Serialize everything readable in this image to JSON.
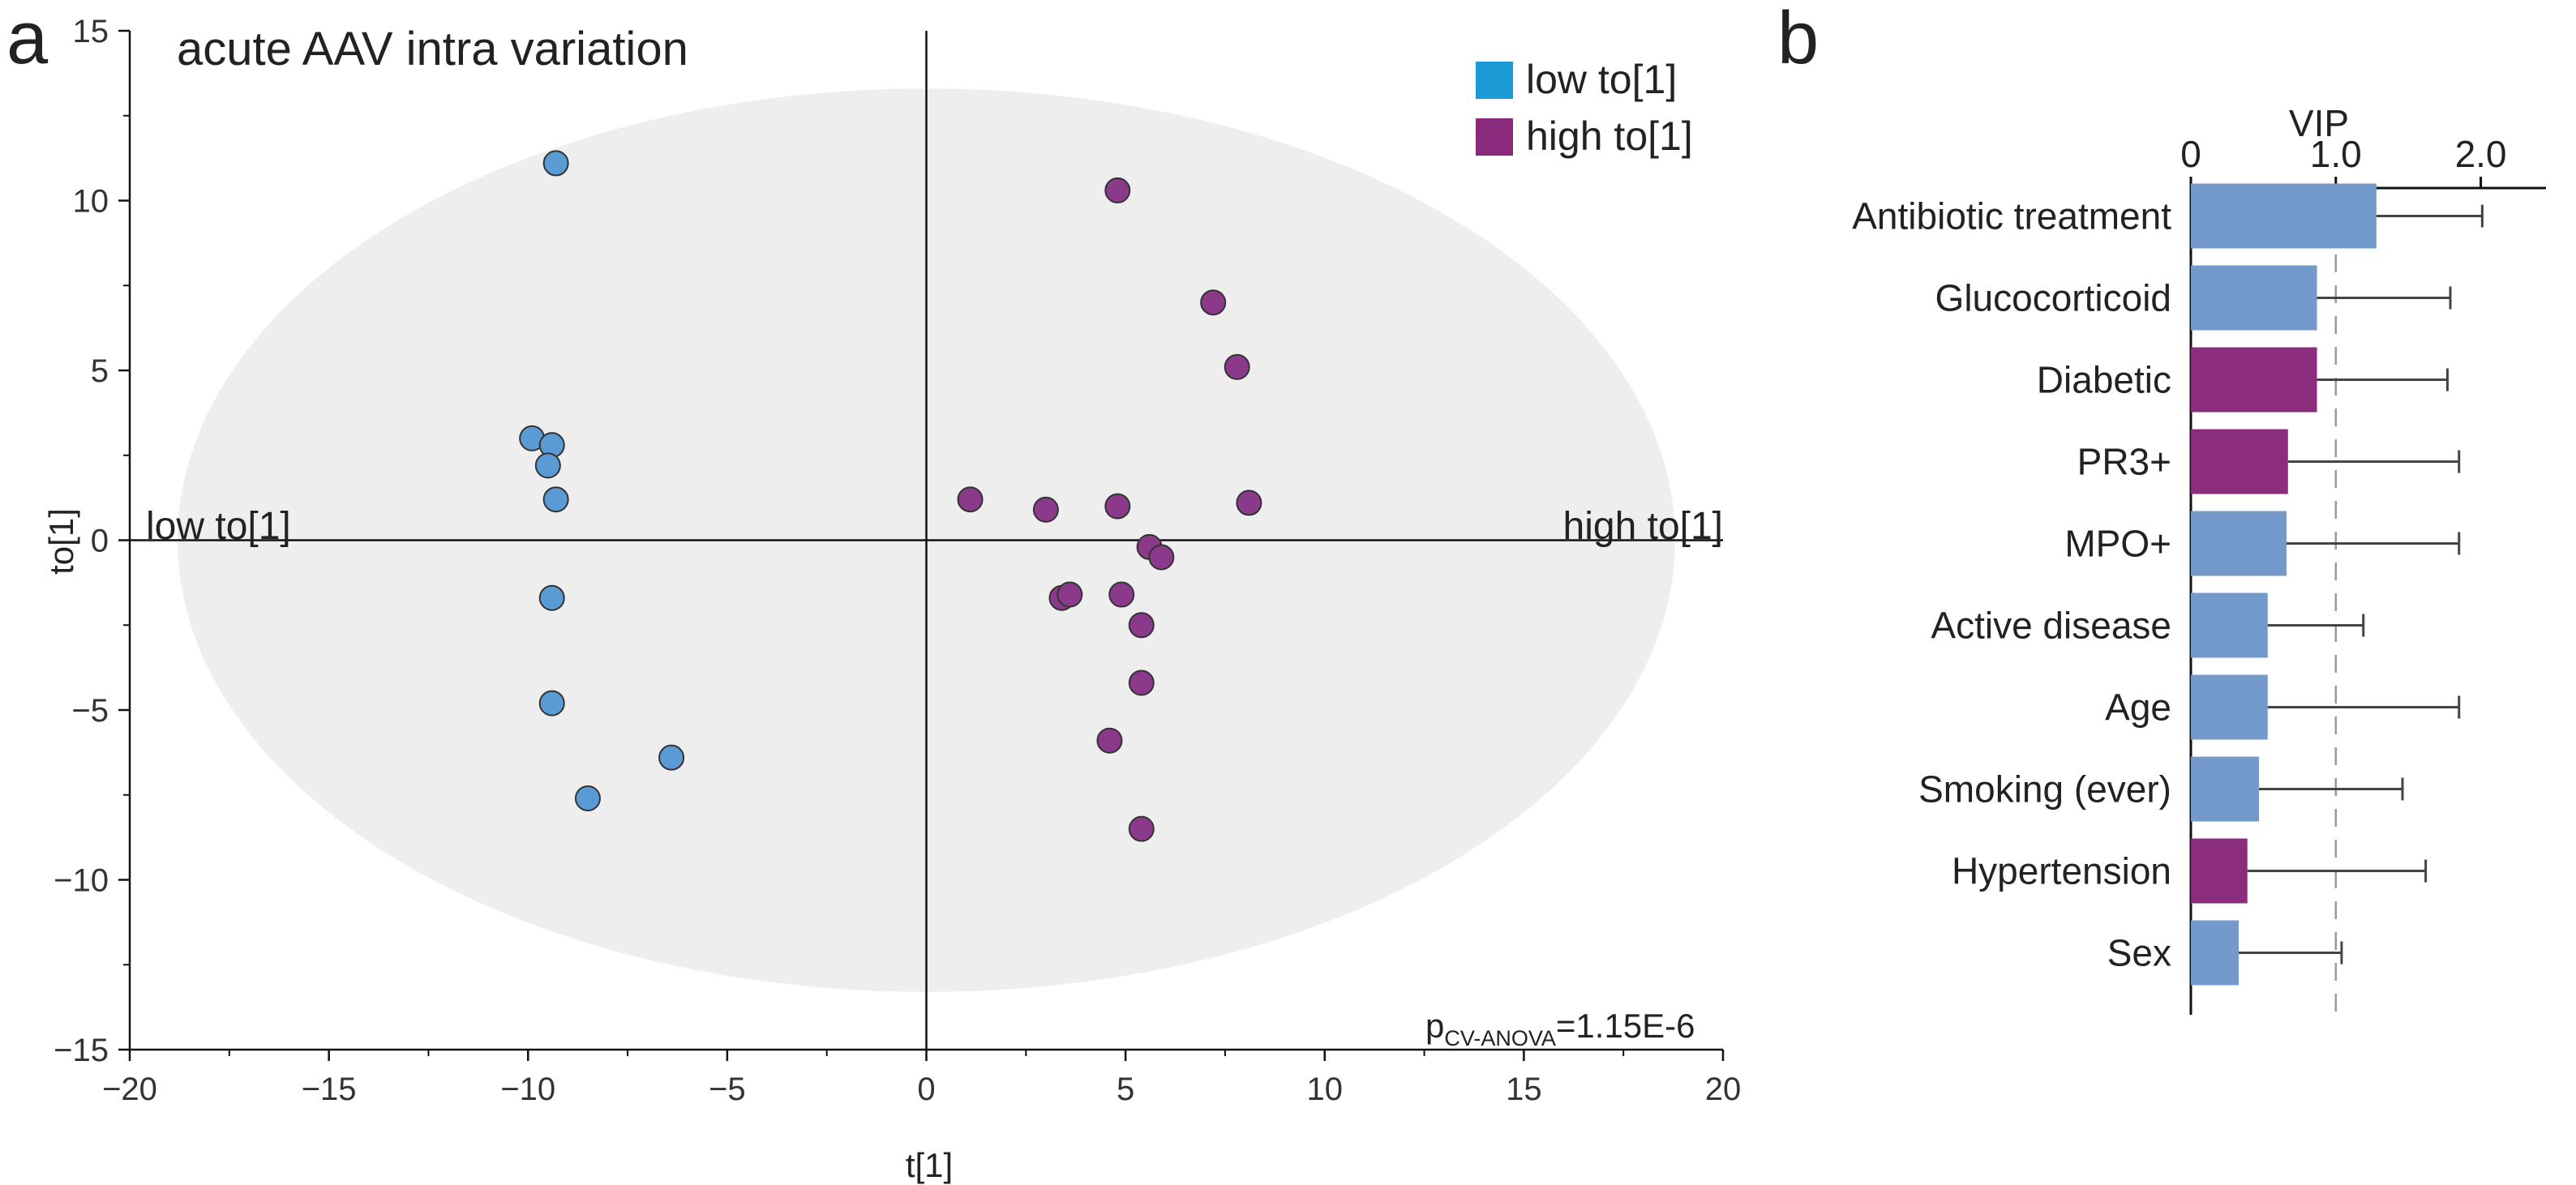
{
  "panels": {
    "a": "a",
    "b": "b"
  },
  "chart_data": [
    {
      "type": "scatter",
      "title": "acute AAV intra variation",
      "xlabel": "t[1]",
      "ylabel": "to[1]",
      "xlim": [
        -20,
        20
      ],
      "ylim": [
        -15,
        15
      ],
      "xticks": [
        -20,
        -15,
        -10,
        -5,
        0,
        5,
        10,
        15,
        20
      ],
      "yticks": [
        -15,
        -10,
        -5,
        0,
        5,
        10,
        15
      ],
      "tick_labels": {
        "x": [
          "−20",
          "−15",
          "−10",
          "−5",
          "0",
          "5",
          "10",
          "15",
          "20"
        ],
        "y": [
          "−15",
          "−10",
          "−5",
          "0",
          "5",
          "10",
          "15"
        ]
      },
      "left_label": "low to[1]",
      "right_label": "high to[1]",
      "p_value": {
        "prefix": "p",
        "subscript": "CV-ANOVA",
        "value": "=1.15E-6"
      },
      "ellipse": {
        "cx": 0,
        "cy": 0,
        "rx": 18.8,
        "ry": 13.3,
        "color": "#eeeeee"
      },
      "legend": [
        {
          "label": "low to[1]",
          "color": "#1b9ad6"
        },
        {
          "label": "high to[1]",
          "color": "#8a2a7c"
        }
      ],
      "series": [
        {
          "name": "low to[1]",
          "color": "#5b9bd5",
          "points": [
            [
              -9.3,
              11.1
            ],
            [
              -9.9,
              3.0
            ],
            [
              -9.4,
              2.8
            ],
            [
              -9.5,
              2.2
            ],
            [
              -9.3,
              1.2
            ],
            [
              -9.4,
              -1.7
            ],
            [
              -9.4,
              -4.8
            ],
            [
              -6.4,
              -6.4
            ],
            [
              -8.5,
              -7.6
            ]
          ]
        },
        {
          "name": "high to[1]",
          "color": "#8b3a8b",
          "points": [
            [
              4.8,
              10.3
            ],
            [
              7.2,
              7.0
            ],
            [
              7.8,
              5.1
            ],
            [
              1.1,
              1.2
            ],
            [
              3.0,
              0.9
            ],
            [
              4.8,
              1.0
            ],
            [
              8.1,
              1.1
            ],
            [
              5.6,
              -0.2
            ],
            [
              5.9,
              -0.5
            ],
            [
              3.4,
              -1.7
            ],
            [
              3.6,
              -1.6
            ],
            [
              4.9,
              -1.6
            ],
            [
              5.4,
              -2.5
            ],
            [
              5.4,
              -4.2
            ],
            [
              4.6,
              -5.9
            ],
            [
              5.4,
              -8.5
            ]
          ]
        }
      ]
    },
    {
      "type": "bar",
      "orientation": "horizontal",
      "title": "VIP",
      "xlim": [
        0,
        2.45
      ],
      "xticks": [
        0,
        1.0,
        2.0
      ],
      "tick_labels": [
        "0",
        "1.0",
        "2.0"
      ],
      "reference_line": 1.0,
      "categories": [
        "Antibiotic treatment",
        "Glucocorticoid",
        "Diabetic",
        "PR3+",
        "MPO+",
        "Active disease",
        "Age",
        "Smoking (ever)",
        "Hypertension",
        "Sex"
      ],
      "values": [
        1.28,
        0.87,
        0.87,
        0.67,
        0.66,
        0.53,
        0.53,
        0.47,
        0.39,
        0.33
      ],
      "error_upper": [
        2.01,
        1.79,
        1.77,
        1.85,
        1.85,
        1.19,
        1.85,
        1.46,
        1.62,
        1.04
      ],
      "colors": [
        "#7499cb",
        "#7499cb",
        "#8b2c7c",
        "#8b2c7c",
        "#7499cb",
        "#7499cb",
        "#7499cb",
        "#7499cb",
        "#8b2c7c",
        "#7499cb"
      ]
    }
  ]
}
